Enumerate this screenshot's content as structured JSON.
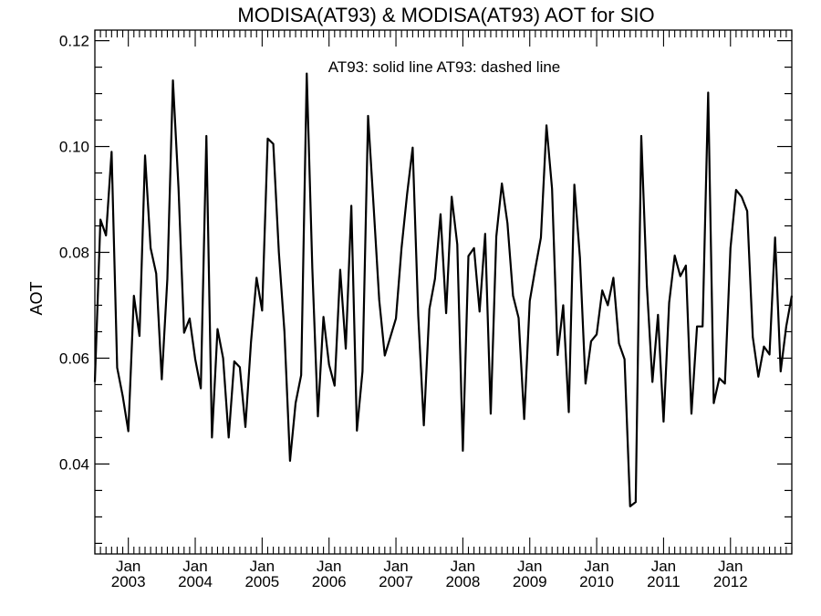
{
  "chart_data": {
    "type": "line",
    "title": "MODISA(AT93) & MODISA(AT93)  AOT for SIO",
    "annotation": "AT93: solid line   AT93: dashed line",
    "ylabel": "AOT",
    "xlabel": "",
    "ylim": [
      0.023,
      0.122
    ],
    "xlim": [
      "2002-07",
      "2012-12"
    ],
    "y_ticks": [
      "0.04",
      "0.06",
      "0.08",
      "0.10",
      "0.12"
    ],
    "x_ticks": [
      {
        "month": "Jan",
        "year": "2003",
        "date": "2003-01"
      },
      {
        "month": "Jan",
        "year": "2004",
        "date": "2004-01"
      },
      {
        "month": "Jan",
        "year": "2005",
        "date": "2005-01"
      },
      {
        "month": "Jan",
        "year": "2006",
        "date": "2006-01"
      },
      {
        "month": "Jan",
        "year": "2007",
        "date": "2007-01"
      },
      {
        "month": "Jan",
        "year": "2008",
        "date": "2008-01"
      },
      {
        "month": "Jan",
        "year": "2009",
        "date": "2009-01"
      },
      {
        "month": "Jan",
        "year": "2010",
        "date": "2010-01"
      },
      {
        "month": "Jan",
        "year": "2011",
        "date": "2011-01"
      },
      {
        "month": "Jan",
        "year": "2012",
        "date": "2012-01"
      }
    ],
    "grid": false,
    "series": [
      {
        "line_style": "solid",
        "color": "#000000",
        "x": [
          "2002-07",
          "2002-08",
          "2002-09",
          "2002-10",
          "2002-11",
          "2002-12",
          "2003-01",
          "2003-02",
          "2003-03",
          "2003-04",
          "2003-05",
          "2003-06",
          "2003-07",
          "2003-08",
          "2003-09",
          "2003-10",
          "2003-11",
          "2003-12",
          "2004-01",
          "2004-02",
          "2004-03",
          "2004-04",
          "2004-05",
          "2004-06",
          "2004-07",
          "2004-08",
          "2004-09",
          "2004-10",
          "2004-11",
          "2004-12",
          "2005-01",
          "2005-02",
          "2005-03",
          "2005-04",
          "2005-05",
          "2005-06",
          "2005-07",
          "2005-08",
          "2005-09",
          "2005-10",
          "2005-11",
          "2005-12",
          "2006-01",
          "2006-02",
          "2006-03",
          "2006-04",
          "2006-05",
          "2006-06",
          "2006-07",
          "2006-08",
          "2006-09",
          "2006-10",
          "2006-11",
          "2006-12",
          "2007-01",
          "2007-02",
          "2007-03",
          "2007-04",
          "2007-05",
          "2007-06",
          "2007-07",
          "2007-08",
          "2007-09",
          "2007-10",
          "2007-11",
          "2007-12",
          "2008-01",
          "2008-02",
          "2008-03",
          "2008-04",
          "2008-05",
          "2008-06",
          "2008-07",
          "2008-08",
          "2008-09",
          "2008-10",
          "2008-11",
          "2008-12",
          "2009-01",
          "2009-02",
          "2009-03",
          "2009-04",
          "2009-05",
          "2009-06",
          "2009-07",
          "2009-08",
          "2009-09",
          "2009-10",
          "2009-11",
          "2009-12",
          "2010-01",
          "2010-02",
          "2010-03",
          "2010-04",
          "2010-05",
          "2010-06",
          "2010-07",
          "2010-08",
          "2010-09",
          "2010-10",
          "2010-11",
          "2010-12",
          "2011-01",
          "2011-02",
          "2011-03",
          "2011-04",
          "2011-05",
          "2011-06",
          "2011-07",
          "2011-08",
          "2011-09",
          "2011-10",
          "2011-11",
          "2011-12",
          "2012-01",
          "2012-02",
          "2012-03",
          "2012-04",
          "2012-05",
          "2012-06",
          "2012-07",
          "2012-08",
          "2012-09",
          "2012-10",
          "2012-11",
          "2012-12"
        ],
        "values": [
          0.0555,
          0.0862,
          0.0832,
          0.099,
          0.0582,
          0.0528,
          0.0462,
          0.0718,
          0.0642,
          0.0983,
          0.0808,
          0.076,
          0.056,
          0.075,
          0.1125,
          0.0922,
          0.0648,
          0.0675,
          0.0598,
          0.0543,
          0.102,
          0.045,
          0.0655,
          0.06,
          0.045,
          0.0594,
          0.0583,
          0.047,
          0.063,
          0.0752,
          0.069,
          0.1015,
          0.1005,
          0.08,
          0.065,
          0.0406,
          0.0515,
          0.0568,
          0.1138,
          0.077,
          0.049,
          0.0678,
          0.0588,
          0.0548,
          0.0767,
          0.0618,
          0.0888,
          0.0463,
          0.0575,
          0.1058,
          0.0886,
          0.071,
          0.0605,
          0.064,
          0.0675,
          0.0808,
          0.091,
          0.0998,
          0.068,
          0.0473,
          0.0693,
          0.075,
          0.0872,
          0.0685,
          0.0905,
          0.0815,
          0.0425,
          0.0793,
          0.0808,
          0.0688,
          0.0835,
          0.0495,
          0.083,
          0.093,
          0.0855,
          0.0718,
          0.0676,
          0.0485,
          0.0708,
          0.077,
          0.0828,
          0.104,
          0.092,
          0.0606,
          0.07,
          0.0498,
          0.0928,
          0.079,
          0.0552,
          0.0632,
          0.0645,
          0.0728,
          0.07,
          0.0752,
          0.0628,
          0.0598,
          0.032,
          0.0328,
          0.102,
          0.0738,
          0.0555,
          0.0682,
          0.048,
          0.0705,
          0.0794,
          0.0755,
          0.0775,
          0.0495,
          0.066,
          0.066,
          0.1102,
          0.0515,
          0.0562,
          0.0552,
          0.0808,
          0.0918,
          0.0905,
          0.0878,
          0.064,
          0.0565,
          0.0622,
          0.0607,
          0.0828,
          0.0575,
          0.066,
          0.0718
        ]
      }
    ]
  }
}
